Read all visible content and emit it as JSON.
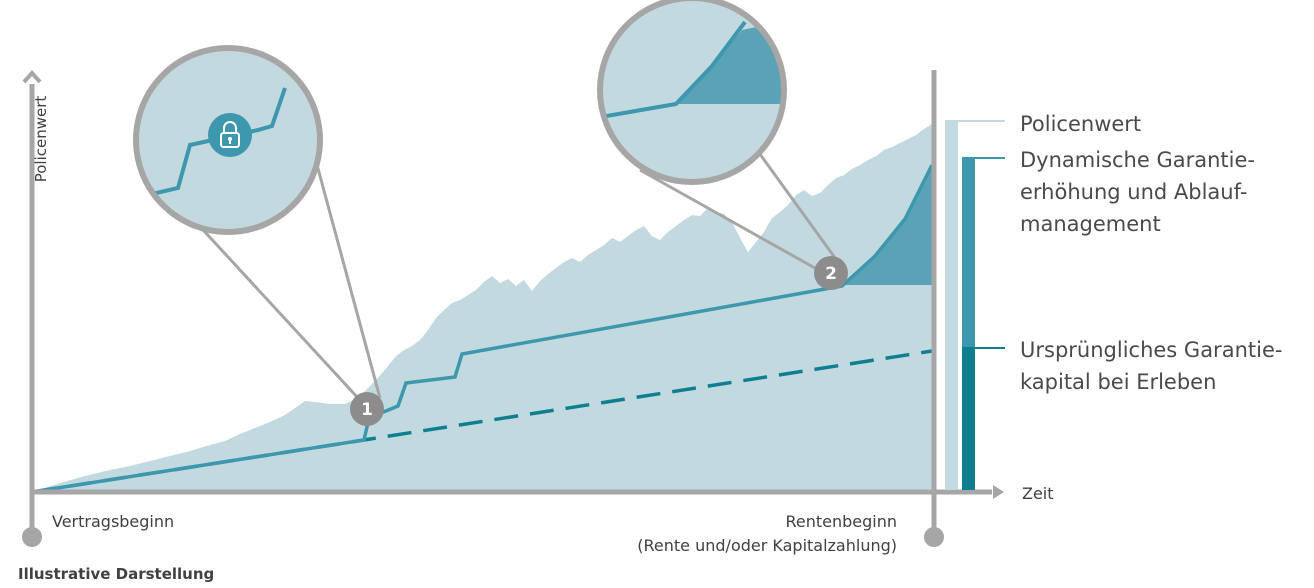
{
  "chart": {
    "ylabel": "Policenwert",
    "xlabel": "Zeit",
    "start_label": "Vertragsbeginn",
    "end_label_line1": "Rentenbeginn",
    "end_label_line2": "(Rente und/oder Kapitalzahlung)",
    "footnote": "Illustrative Darstellung",
    "markers": [
      "1",
      "2"
    ]
  },
  "legend": {
    "policenwert": "Policenwert",
    "dynamic_line1": "Dynamische Garantie-",
    "dynamic_line2": "erhöhung und Ablauf-",
    "dynamic_line3": "management",
    "original_line1": "Ursprüngliches Garantie-",
    "original_line2": "kapital bei Erleben"
  },
  "colors": {
    "axis": "#a6a6a6",
    "policenwert_area": "#c3d9e0",
    "guarantee_line": "#3d97ad",
    "dynamic_gain_area": "#5aa2b6",
    "original_guarantee_line": "#0f7f90",
    "marker_fill": "#8c8c8c"
  },
  "icons": {
    "zoom1": "lock-icon"
  }
}
